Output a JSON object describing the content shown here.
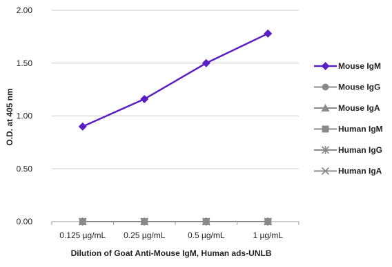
{
  "chart_data": {
    "type": "line",
    "categories": [
      "0.125 µg/mL",
      "0.25 µg/mL",
      "0.5 µg/mL",
      "1 µg/mL"
    ],
    "xlabel": "Dilution of Goat Anti-Mouse IgM, Human ads-UNLB",
    "ylabel": "O.D. at 405 nm",
    "ylim": [
      0,
      2
    ],
    "yticks": [
      "0.00",
      "0.50",
      "1.00",
      "1.50",
      "2.00"
    ],
    "grid": true,
    "legend_position": "right",
    "series": [
      {
        "name": "Mouse IgM",
        "values": [
          0.9,
          1.16,
          1.5,
          1.78
        ],
        "color": "#5a1fc2",
        "marker": "diamond"
      },
      {
        "name": "Mouse IgG",
        "values": [
          0,
          0,
          0,
          0
        ],
        "color": "#8a8a8a",
        "marker": "circle"
      },
      {
        "name": "Mouse IgA",
        "values": [
          0,
          0,
          0,
          0
        ],
        "color": "#8a8a8a",
        "marker": "triangle"
      },
      {
        "name": "Human IgM",
        "values": [
          0,
          0,
          0,
          0
        ],
        "color": "#8a8a8a",
        "marker": "square"
      },
      {
        "name": "Human IgG",
        "values": [
          0,
          0,
          0,
          0
        ],
        "color": "#8a8a8a",
        "marker": "star"
      },
      {
        "name": "Human IgA",
        "values": [
          0,
          0,
          0,
          0
        ],
        "color": "#8a8a8a",
        "marker": "cross"
      }
    ]
  }
}
